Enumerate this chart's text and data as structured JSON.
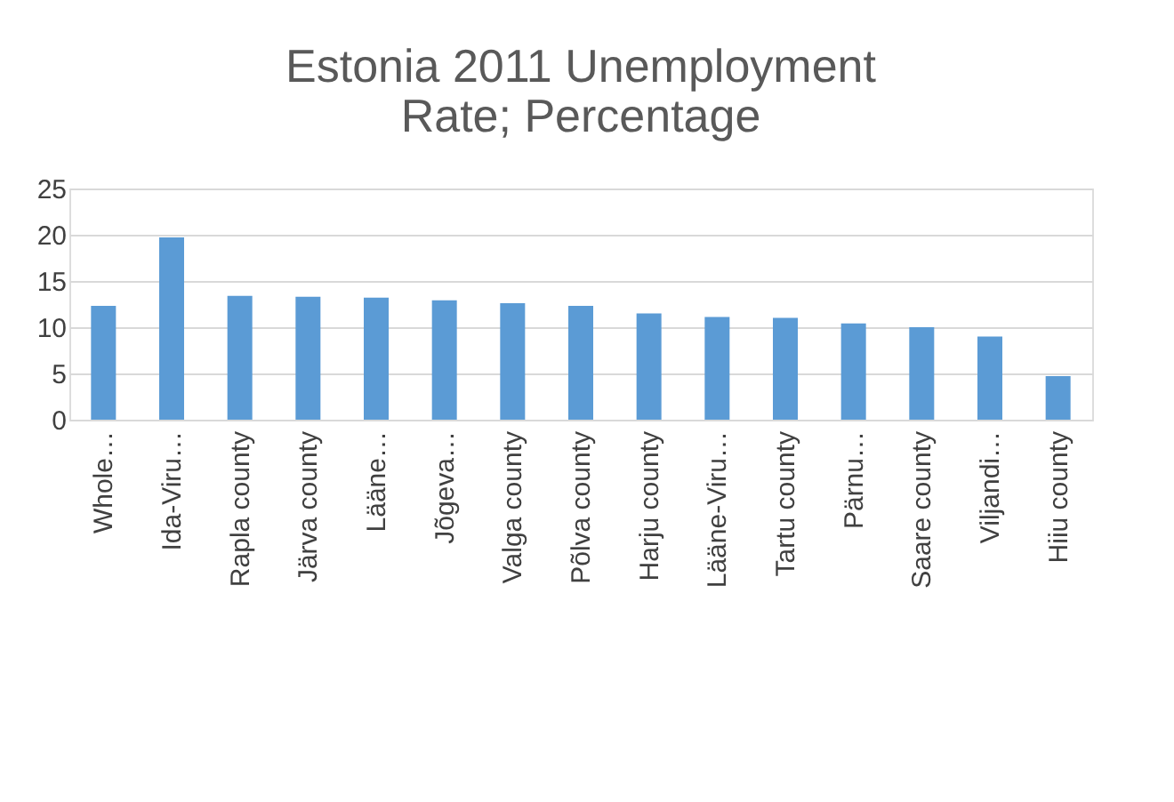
{
  "chart_data": {
    "type": "bar",
    "title": "Estonia 2011 Unemployment Rate; Percentage",
    "categories": [
      "Whole…",
      "Ida-Viru…",
      "Rapla county",
      "Järva county",
      "Lääne…",
      "Jõgeva…",
      "Valga county",
      "Põlva county",
      "Harju county",
      "Lääne-Viru…",
      "Tartu county",
      "Pärnu…",
      "Saare county",
      "Viljandi…",
      "Hiiu county"
    ],
    "values": [
      12.3,
      19.7,
      13.4,
      13.3,
      13.2,
      12.9,
      12.6,
      12.3,
      11.5,
      11.1,
      11.0,
      10.4,
      10.0,
      9.0,
      4.7
    ],
    "color": "#5b9bd5",
    "ylim": [
      0,
      25
    ],
    "yticks": [
      0,
      5,
      10,
      15,
      20,
      25
    ],
    "grid": "y"
  }
}
